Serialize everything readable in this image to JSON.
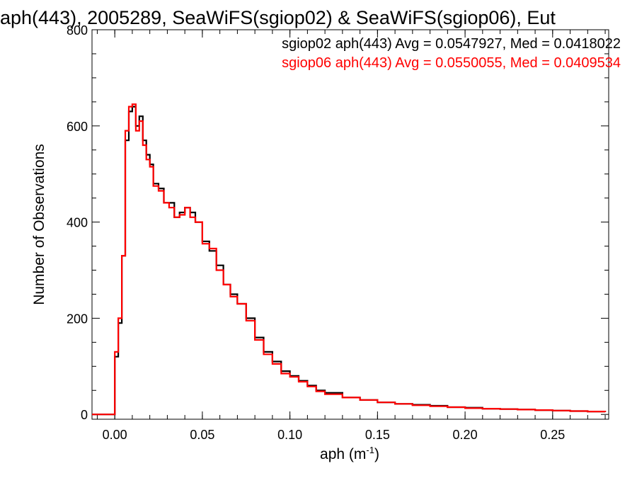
{
  "chart_data": {
    "type": "line",
    "title": "aph(443), 2005289, SeaWiFS(sgiop02) & SeaWiFS(sgiop06), Eut",
    "xlabel": "aph (m",
    "xlabel_sup": "-1",
    "xlabel_close": ")",
    "ylabel": "Number of Observations",
    "xlim": [
      -0.013,
      0.282
    ],
    "ylim": [
      -10,
      800
    ],
    "x_ticks": [
      0.0,
      0.05,
      0.1,
      0.15,
      0.2,
      0.25
    ],
    "x_tick_labels": [
      "0.00",
      "0.05",
      "0.10",
      "0.15",
      "0.20",
      "0.25"
    ],
    "y_ticks": [
      0,
      200,
      400,
      600,
      800
    ],
    "y_tick_labels": [
      "0",
      "200",
      "400",
      "600",
      "800"
    ],
    "grid": false,
    "legend": [
      {
        "text": "sgiop02 aph(443) Avg = 0.0547927, Med = 0.0418022",
        "color": "#000000"
      },
      {
        "text": "sgiop06 aph(443) Avg = 0.0550055, Med = 0.0409534",
        "color": "#ff0000"
      }
    ],
    "legend_placement": "top-right",
    "series": [
      {
        "color": "#000000",
        "x": [
          -0.013,
          -0.0005,
          0.0,
          0.002,
          0.004,
          0.006,
          0.008,
          0.01,
          0.012,
          0.014,
          0.016,
          0.018,
          0.02,
          0.022,
          0.025,
          0.028,
          0.031,
          0.034,
          0.037,
          0.04,
          0.043,
          0.046,
          0.05,
          0.054,
          0.058,
          0.062,
          0.066,
          0.07,
          0.075,
          0.08,
          0.085,
          0.09,
          0.095,
          0.1,
          0.105,
          0.11,
          0.115,
          0.12,
          0.13,
          0.14,
          0.15,
          0.16,
          0.17,
          0.18,
          0.19,
          0.2,
          0.21,
          0.22,
          0.23,
          0.24,
          0.25,
          0.26,
          0.27,
          0.28
        ],
        "y": [
          0,
          0,
          120,
          190,
          330,
          570,
          630,
          640,
          600,
          620,
          570,
          540,
          520,
          480,
          470,
          440,
          440,
          410,
          420,
          430,
          420,
          400,
          360,
          340,
          310,
          270,
          250,
          230,
          200,
          160,
          130,
          110,
          90,
          80,
          70,
          60,
          50,
          45,
          35,
          30,
          25,
          22,
          20,
          18,
          15,
          14,
          12,
          11,
          10,
          9,
          8,
          7,
          6,
          5
        ]
      },
      {
        "color": "#ff0000",
        "x": [
          -0.013,
          -0.0005,
          0.0,
          0.002,
          0.004,
          0.006,
          0.008,
          0.01,
          0.012,
          0.014,
          0.016,
          0.018,
          0.02,
          0.022,
          0.025,
          0.028,
          0.031,
          0.034,
          0.037,
          0.04,
          0.043,
          0.046,
          0.05,
          0.054,
          0.058,
          0.062,
          0.066,
          0.07,
          0.075,
          0.08,
          0.085,
          0.09,
          0.095,
          0.1,
          0.105,
          0.11,
          0.115,
          0.12,
          0.13,
          0.14,
          0.15,
          0.16,
          0.17,
          0.18,
          0.19,
          0.2,
          0.21,
          0.22,
          0.23,
          0.24,
          0.25,
          0.26,
          0.27,
          0.28
        ],
        "y": [
          0,
          0,
          130,
          200,
          330,
          590,
          640,
          645,
          590,
          610,
          560,
          530,
          515,
          475,
          465,
          440,
          430,
          410,
          415,
          430,
          410,
          400,
          355,
          345,
          300,
          270,
          245,
          230,
          195,
          155,
          125,
          105,
          85,
          78,
          68,
          58,
          48,
          42,
          35,
          30,
          25,
          22,
          19,
          17,
          15,
          13,
          12,
          11,
          10,
          9,
          8,
          7,
          6,
          5
        ]
      }
    ]
  }
}
